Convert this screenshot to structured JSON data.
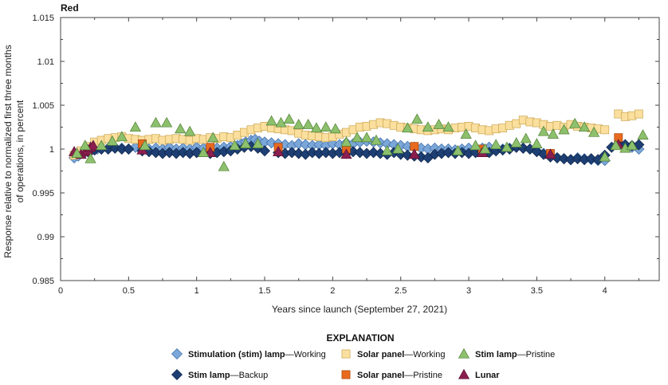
{
  "chart_data": {
    "type": "scatter",
    "title": "Red",
    "xlabel": "Years since launch (September 27, 2021)",
    "ylabel_lines": [
      "Response relative to normalized first three months",
      "of operations, in percent"
    ],
    "xlim": [
      0,
      4.4
    ],
    "ylim": [
      0.985,
      1.015
    ],
    "x_ticks": [
      "0",
      "0.5",
      "1",
      "1.5",
      "2",
      "2.5",
      "3",
      "3.5",
      "4"
    ],
    "y_ticks": [
      "0.985",
      "0.99",
      "0.995",
      "1",
      "1.005",
      "1.01",
      "1.015"
    ],
    "grid": false,
    "legend": {
      "heading": "EXPLANATION",
      "placement": "bottom",
      "entries": [
        {
          "bold": "Stimulation (stim) lamp",
          "rest": "—Working"
        },
        {
          "bold": "Solar panel",
          "rest": "—Working"
        },
        {
          "bold": "Stim lamp",
          "rest": "—Pristine"
        },
        {
          "bold": "Stim lamp",
          "rest": "—Backup"
        },
        {
          "bold": "Solar panel",
          "rest": "—Pristine"
        },
        {
          "bold": "Lunar",
          "rest": ""
        }
      ]
    },
    "series": [
      {
        "name": "Stimulation (stim) lamp—Working",
        "marker": "diamond",
        "color": "#7ba7d8",
        "edge": "#3a6aa8",
        "x": [
          0.1,
          0.13,
          0.17,
          0.2,
          0.23,
          0.27,
          0.3,
          0.35,
          0.4,
          0.45,
          0.5,
          0.55,
          0.6,
          0.65,
          0.7,
          0.75,
          0.8,
          0.85,
          0.9,
          0.95,
          1.0,
          1.05,
          1.1,
          1.15,
          1.2,
          1.25,
          1.3,
          1.33,
          1.36,
          1.4,
          1.43,
          1.46,
          1.5,
          1.55,
          1.6,
          1.65,
          1.7,
          1.75,
          1.8,
          1.85,
          1.9,
          1.95,
          2.0,
          2.05,
          2.1,
          2.15,
          2.2,
          2.25,
          2.3,
          2.35,
          2.4,
          2.45,
          2.5,
          2.55,
          2.6,
          2.65,
          2.7,
          2.75,
          2.8,
          2.85,
          2.9,
          2.95,
          3.0,
          3.05,
          3.1,
          3.15,
          3.2,
          3.25,
          3.3,
          3.35,
          3.4,
          3.45,
          3.5,
          3.55,
          3.6,
          3.65,
          3.7,
          3.75,
          3.8,
          3.85,
          3.9,
          3.95,
          4.0,
          4.1,
          4.15,
          4.2,
          4.25
        ],
        "y": [
          0.999,
          0.9992,
          0.9995,
          0.9998,
          0.9999,
          1.0,
          1.0,
          1.0001,
          1.0002,
          1.0001,
          1.0,
          1.0002,
          1.0001,
          1.0,
          1.0001,
          1.0,
          1.0002,
          1.0,
          1.0001,
          1.0,
          1.0002,
          1.0001,
          1.0,
          1.0001,
          1.0002,
          1.0003,
          1.0004,
          1.0006,
          1.0008,
          1.001,
          1.0011,
          1.0009,
          1.0008,
          1.0007,
          1.0006,
          1.0005,
          1.0004,
          1.0006,
          1.0005,
          1.0004,
          1.0005,
          1.0004,
          1.0006,
          1.0005,
          1.0007,
          1.0006,
          1.0008,
          1.0009,
          1.0008,
          1.0007,
          1.0006,
          1.0005,
          1.0004,
          1.0003,
          1.0002,
          1.0001,
          1.0,
          1.0001,
          1.0,
          1.0,
          0.9999,
          1.0,
          1.0001,
          1.0,
          1.0001,
          1.0002,
          1.0001,
          1.0,
          1.0001,
          1.0002,
          1.0001,
          1.0,
          0.9998,
          0.9995,
          0.9993,
          0.999,
          0.9989,
          0.9988,
          0.999,
          0.9989,
          0.9988,
          0.9987,
          0.9987,
          1.0006,
          1.0004,
          1.0002,
          1.0
        ]
      },
      {
        "name": "Stim lamp—Backup",
        "marker": "diamond",
        "color": "#1d3f73",
        "edge": "#0f2548",
        "x": [
          0.15,
          0.2,
          0.25,
          0.3,
          0.35,
          0.4,
          0.45,
          0.5,
          0.6,
          0.65,
          0.7,
          0.75,
          0.8,
          0.85,
          0.9,
          0.95,
          1.0,
          1.1,
          1.15,
          1.2,
          1.25,
          1.3,
          1.35,
          1.4,
          1.45,
          1.5,
          1.6,
          1.65,
          1.7,
          1.75,
          1.8,
          1.85,
          1.9,
          1.95,
          2.0,
          2.05,
          2.1,
          2.15,
          2.2,
          2.25,
          2.3,
          2.35,
          2.4,
          2.45,
          2.5,
          2.55,
          2.6,
          2.65,
          2.7,
          2.75,
          2.8,
          2.85,
          2.9,
          2.95,
          3.0,
          3.05,
          3.1,
          3.15,
          3.2,
          3.25,
          3.3,
          3.35,
          3.4,
          3.45,
          3.5,
          3.55,
          3.6,
          3.65,
          3.7,
          3.75,
          3.8,
          3.85,
          3.9,
          3.95,
          4.0,
          4.05,
          4.1,
          4.15,
          4.2,
          4.25
        ],
        "y": [
          0.9995,
          0.9997,
          0.9999,
          1.0,
          1.0,
          1.0001,
          1.0,
          1.0,
          0.9998,
          0.9997,
          0.9996,
          0.9995,
          0.9996,
          0.9995,
          0.9996,
          0.9995,
          0.9996,
          0.9995,
          0.9996,
          0.9997,
          0.9998,
          1.0,
          1.0002,
          1.0003,
          1.0001,
          0.9998,
          0.9996,
          0.9995,
          0.9996,
          0.9995,
          0.9994,
          0.9996,
          0.9995,
          0.9996,
          0.9995,
          0.9996,
          0.9995,
          0.9997,
          0.9996,
          0.9995,
          0.9996,
          0.9995,
          0.9994,
          0.9996,
          0.9994,
          0.9993,
          0.9992,
          0.9991,
          0.999,
          0.9994,
          0.9995,
          0.9996,
          0.9995,
          0.9996,
          0.9995,
          0.9996,
          0.9997,
          0.9996,
          0.9998,
          0.9999,
          1.0,
          1.0002,
          1.0001,
          1.0,
          0.9997,
          0.9994,
          0.9991,
          0.999,
          0.9989,
          0.9988,
          0.9989,
          0.9988,
          0.9989,
          0.9988,
          0.9993,
          1.0002,
          1.0006,
          1.0005,
          1.0004,
          1.0005
        ]
      },
      {
        "name": "Solar panel—Working",
        "marker": "square",
        "color": "#fbdf9e",
        "edge": "#c9a64f",
        "x": [
          0.1,
          0.15,
          0.2,
          0.25,
          0.3,
          0.35,
          0.4,
          0.45,
          0.5,
          0.55,
          0.6,
          0.65,
          0.7,
          0.75,
          0.8,
          0.85,
          0.9,
          0.95,
          1.0,
          1.05,
          1.1,
          1.15,
          1.2,
          1.25,
          1.3,
          1.35,
          1.4,
          1.45,
          1.5,
          1.55,
          1.6,
          1.65,
          1.7,
          1.75,
          1.8,
          1.85,
          1.9,
          1.95,
          2.0,
          2.05,
          2.1,
          2.15,
          2.2,
          2.25,
          2.3,
          2.35,
          2.4,
          2.45,
          2.5,
          2.55,
          2.6,
          2.65,
          2.7,
          2.75,
          2.8,
          2.85,
          2.9,
          2.95,
          3.0,
          3.05,
          3.1,
          3.15,
          3.2,
          3.25,
          3.3,
          3.35,
          3.4,
          3.45,
          3.5,
          3.55,
          3.6,
          3.65,
          3.7,
          3.75,
          3.8,
          3.85,
          3.9,
          3.95,
          4.0,
          4.1,
          4.15,
          4.2,
          4.25
        ],
        "y": [
          0.9993,
          0.9998,
          1.0003,
          1.0008,
          1.001,
          1.0012,
          1.0013,
          1.0014,
          1.0012,
          1.0011,
          1.001,
          1.0011,
          1.0012,
          1.001,
          1.0011,
          1.0012,
          1.0011,
          1.001,
          1.0012,
          1.0011,
          1.0013,
          1.0012,
          1.0014,
          1.0013,
          1.0016,
          1.0019,
          1.0022,
          1.0024,
          1.0026,
          1.0024,
          1.0023,
          1.0022,
          1.0021,
          1.0018,
          1.0016,
          1.0015,
          1.0014,
          1.0013,
          1.0014,
          1.0017,
          1.0019,
          1.0022,
          1.0025,
          1.0026,
          1.0028,
          1.003,
          1.0029,
          1.0027,
          1.0025,
          1.0024,
          1.0023,
          1.0022,
          1.0021,
          1.0022,
          1.0023,
          1.0022,
          1.0024,
          1.0025,
          1.0026,
          1.0024,
          1.0022,
          1.0021,
          1.0023,
          1.0024,
          1.0027,
          1.0029,
          1.0033,
          1.0031,
          1.003,
          1.0028,
          1.0026,
          1.0027,
          1.0025,
          1.0028,
          1.0026,
          1.0025,
          1.0024,
          1.0023,
          1.0022,
          1.004,
          1.0037,
          1.0038,
          1.004
        ]
      },
      {
        "name": "Solar panel—Pristine",
        "marker": "square",
        "color": "#e86a1e",
        "edge": "#a8440c",
        "x": [
          0.6,
          1.1,
          1.6,
          2.1,
          2.6,
          3.1,
          3.6,
          4.1
        ],
        "y": [
          1.0006,
          1.0002,
          1.0002,
          1.0,
          1.0003,
          1.0,
          0.9995,
          1.0013
        ]
      },
      {
        "name": "Stim lamp—Pristine",
        "marker": "triangle",
        "color": "#8a1f4f",
        "edge": "#5a0f32",
        "x": [
          0.1,
          0.12,
          0.15,
          0.18,
          0.2,
          0.22,
          0.24,
          0.6,
          1.1,
          1.6,
          2.1,
          2.6,
          3.1,
          3.6,
          4.1
        ],
        "y": [
          0.9997,
          0.9995,
          0.9994,
          0.9997,
          0.9999,
          1.0002,
          1.0004,
          0.9999,
          0.9996,
          0.9997,
          0.9994,
          0.9994,
          0.9996,
          0.9994,
          1.0005
        ]
      },
      {
        "name": "Lunar",
        "marker": "triangle",
        "color": "#8dc06c",
        "edge": "#4f7f34",
        "x": [
          0.12,
          0.18,
          0.22,
          0.3,
          0.38,
          0.45,
          0.55,
          0.62,
          0.7,
          0.78,
          0.88,
          0.95,
          1.05,
          1.12,
          1.2,
          1.28,
          1.36,
          1.45,
          1.55,
          1.62,
          1.68,
          1.75,
          1.82,
          1.88,
          1.95,
          2.02,
          2.1,
          2.18,
          2.25,
          2.32,
          2.4,
          2.48,
          2.55,
          2.62,
          2.7,
          2.78,
          2.85,
          2.92,
          2.98,
          3.05,
          3.12,
          3.2,
          3.28,
          3.35,
          3.42,
          3.5,
          3.55,
          3.62,
          3.7,
          3.78,
          3.85,
          3.92,
          4.0,
          4.08,
          4.15,
          4.2,
          4.28
        ],
        "y": [
          0.9995,
          1.0004,
          0.9989,
          1.0004,
          1.0009,
          1.0014,
          1.0025,
          1.0004,
          1.003,
          1.003,
          1.0023,
          1.002,
          0.9996,
          1.0013,
          0.998,
          1.0004,
          1.0006,
          1.0006,
          1.0032,
          1.003,
          1.0034,
          1.0028,
          1.0028,
          1.0024,
          1.0025,
          1.0023,
          1.0008,
          1.0013,
          1.0013,
          1.001,
          0.9998,
          1.0,
          1.0024,
          1.0034,
          1.0025,
          1.0028,
          1.0025,
          0.9998,
          1.0017,
          1.0004,
          1.0,
          1.0005,
          1.0002,
          1.0007,
          1.0012,
          1.0006,
          1.002,
          1.0017,
          1.0022,
          1.0029,
          1.0025,
          1.0019,
          0.9991,
          1.0004,
          1.0001,
          1.0004,
          1.0016
        ]
      }
    ]
  }
}
